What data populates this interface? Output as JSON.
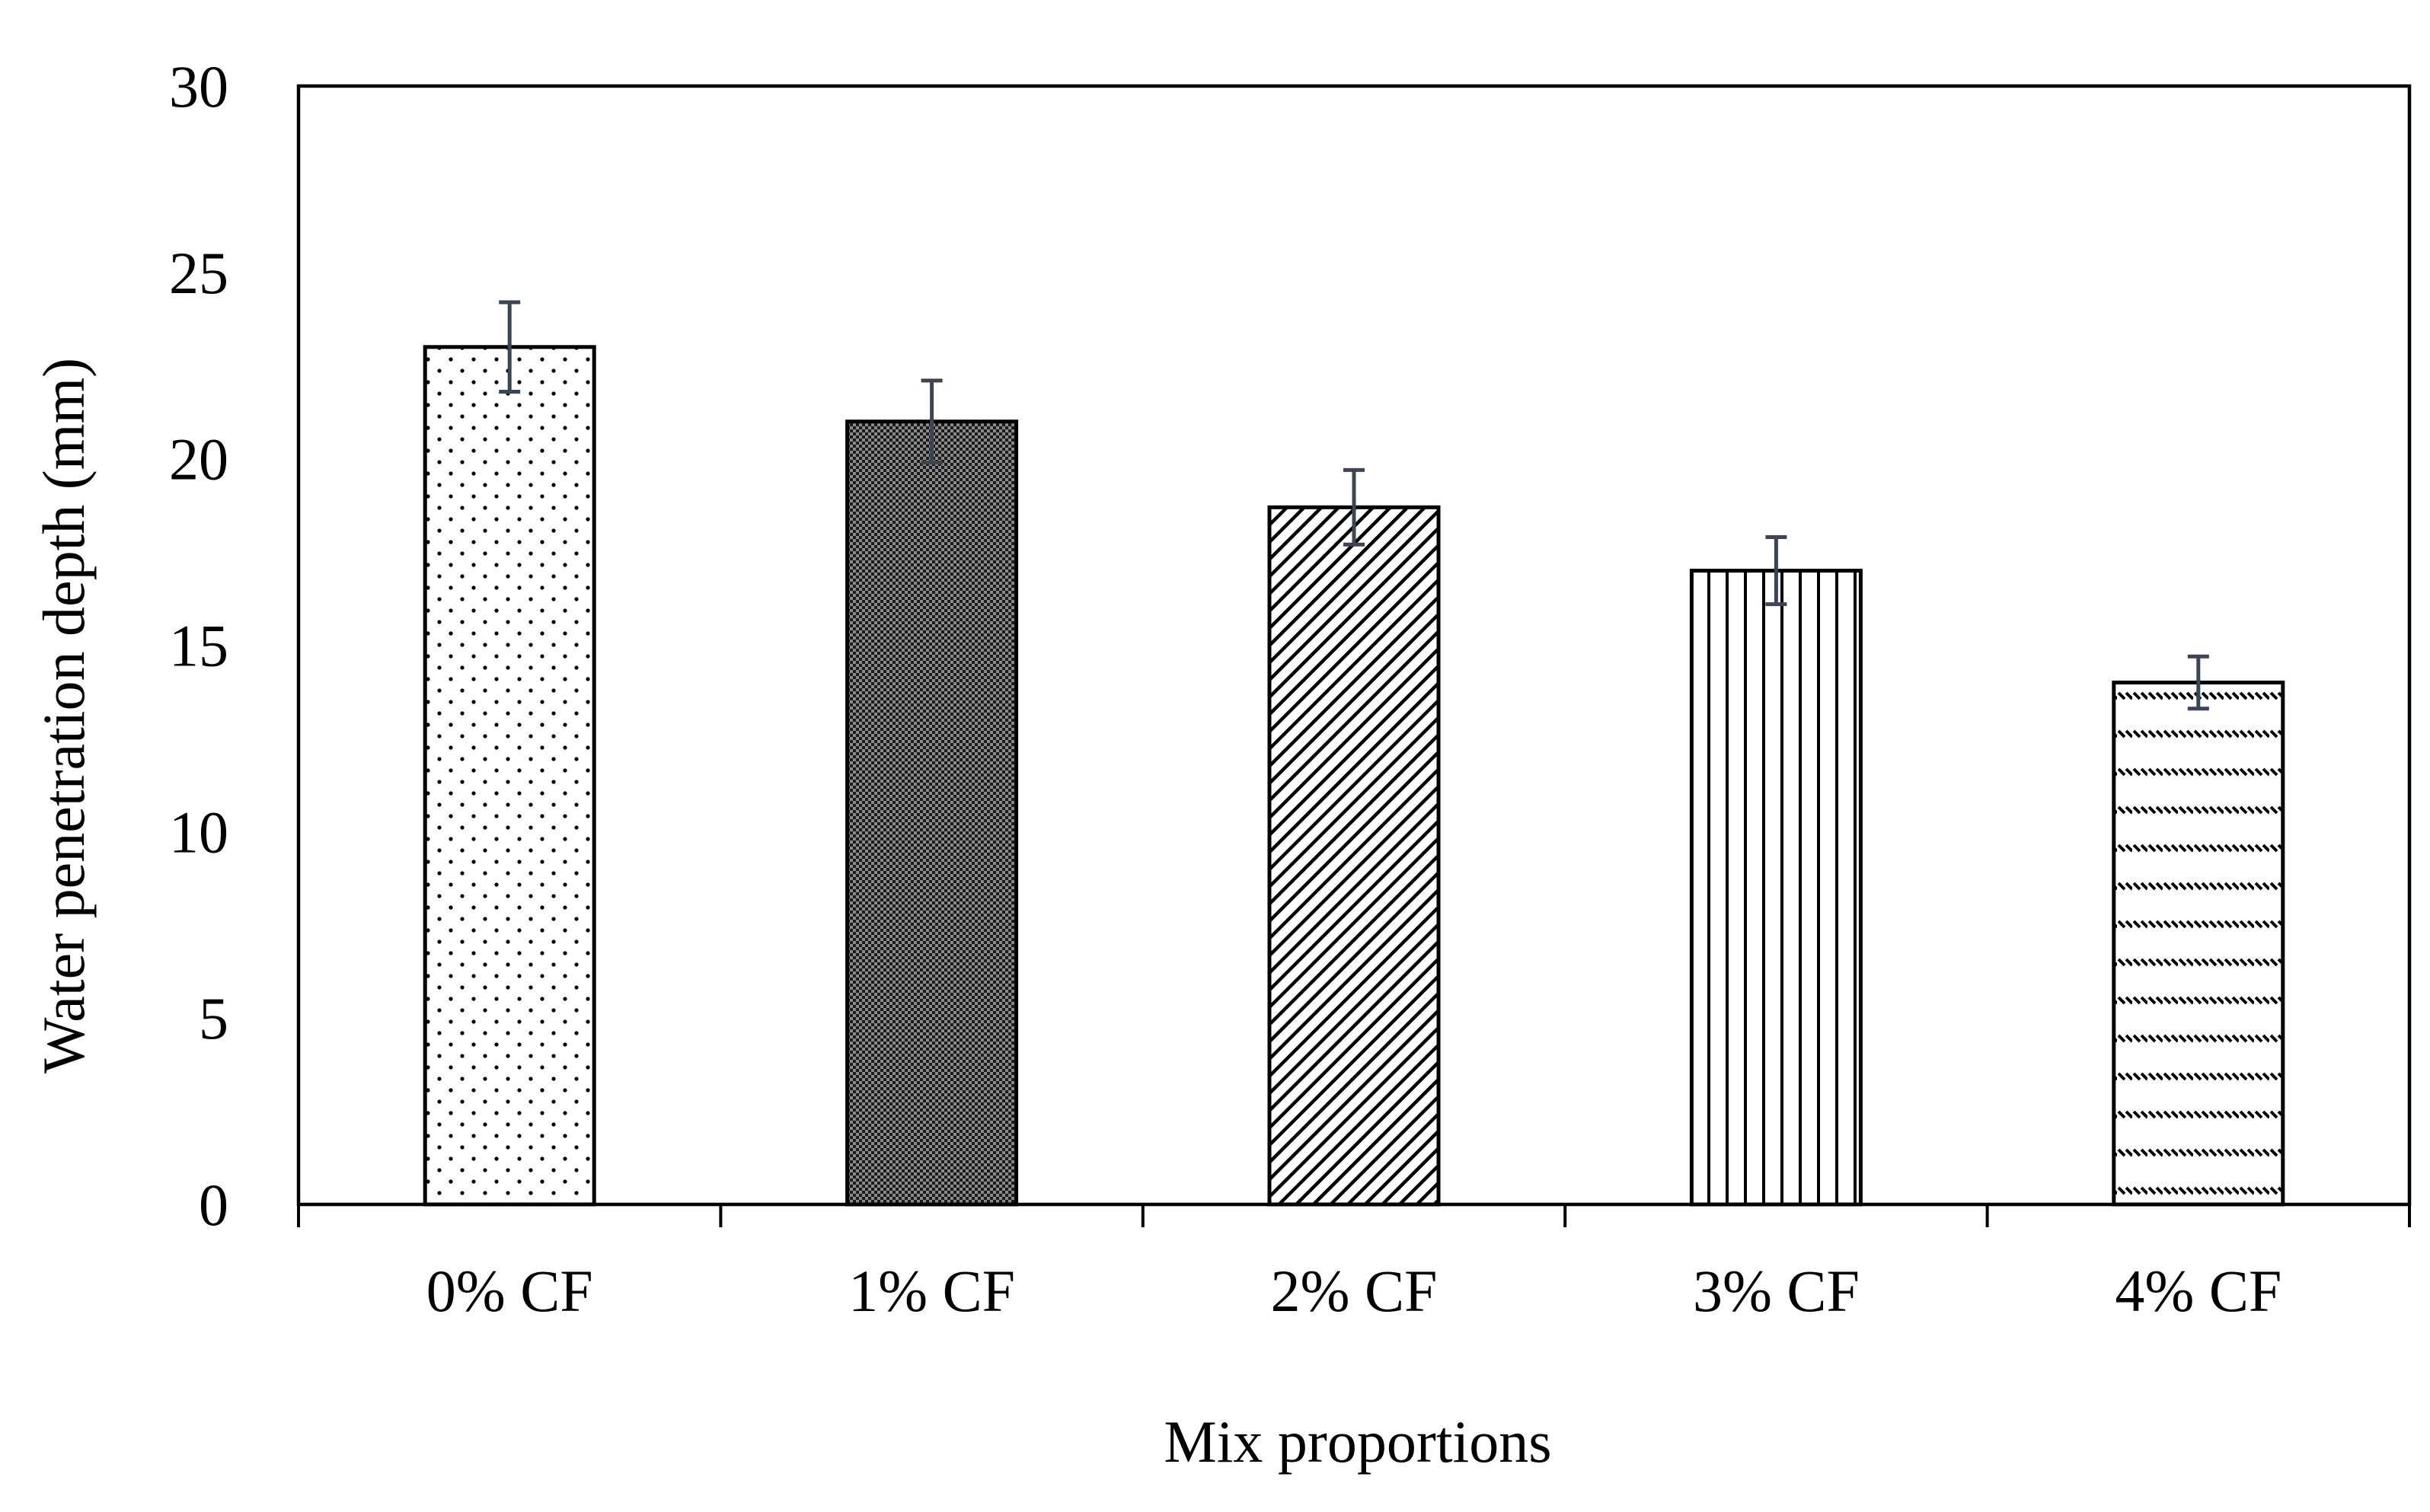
{
  "chart_data": {
    "type": "bar",
    "title": "",
    "xlabel": "Mix proportions",
    "ylabel": "Water penetration depth (mm)",
    "ylim": [
      0,
      30
    ],
    "yticks": [
      "0",
      "5",
      "10",
      "15",
      "20",
      "25",
      "30"
    ],
    "grid": false,
    "legend": "none",
    "categories": [
      "0% CF",
      "1% CF",
      "2% CF",
      "3% CF",
      "4% CF"
    ],
    "values": [
      23.0,
      21.0,
      18.7,
      17.0,
      14.0
    ],
    "errors": [
      1.2,
      1.1,
      1.0,
      0.9,
      0.7
    ],
    "patterns": [
      "dots",
      "checker",
      "diagonal",
      "vertical",
      "dashed-horizontal"
    ],
    "colors": {
      "bar_fill": "#ffffff",
      "bar_stroke": "#000000",
      "pattern_ink": "#000000",
      "error_bar": "#3b4556",
      "axis": "#000000"
    }
  }
}
